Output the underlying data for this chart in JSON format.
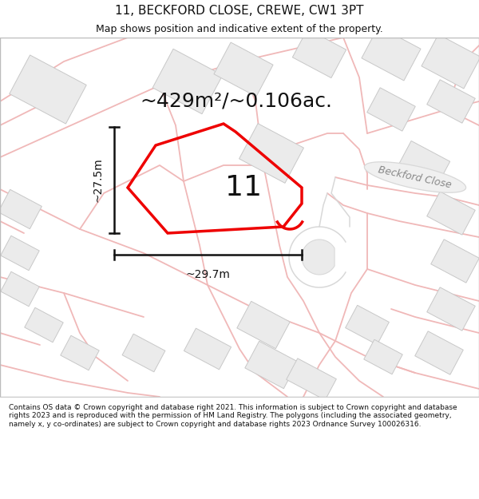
{
  "title": "11, BECKFORD CLOSE, CREWE, CW1 3PT",
  "subtitle": "Map shows position and indicative extent of the property.",
  "area_label": "~429m²/~0.106ac.",
  "plot_number": "11",
  "dim_width": "~29.7m",
  "dim_height": "~27.5m",
  "street_label": "Beckford Close",
  "footer": "Contains OS data © Crown copyright and database right 2021. This information is subject to Crown copyright and database rights 2023 and is reproduced with the permission of HM Land Registry. The polygons (including the associated geometry, namely x, y co-ordinates) are subject to Crown copyright and database rights 2023 Ordnance Survey 100026316.",
  "bg_color": "#ffffff",
  "map_bg": "#ffffff",
  "road_line_color": "#f0b8b8",
  "building_color": "#ebebeb",
  "building_edge": "#c8c8c8",
  "plot_color": "#ee0000",
  "dim_color": "#111111",
  "title_color": "#111111",
  "footer_color": "#111111",
  "road_fill_color": "#f8e8e8",
  "beckford_road_color": "#d8d8d8",
  "beckford_road_fill": "#f0f0f0",
  "title_fontsize": 11,
  "subtitle_fontsize": 9,
  "area_fontsize": 18,
  "plot_number_fontsize": 26,
  "dim_fontsize": 10,
  "street_fontsize": 9,
  "footer_fontsize": 6.5
}
